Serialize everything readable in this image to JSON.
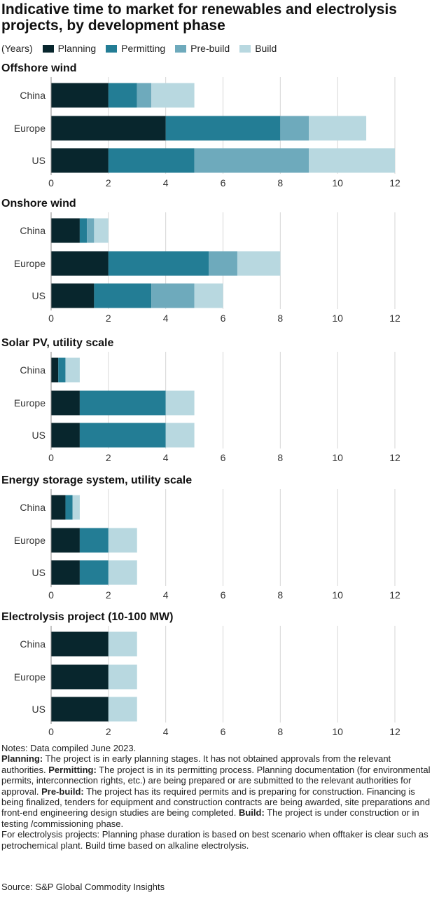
{
  "title": "Indicative time to market for renewables and electrolysis projects, by development phase",
  "legend": {
    "unit": "(Years)",
    "items": [
      {
        "label": "Planning",
        "color": "#08262d"
      },
      {
        "label": "Permitting",
        "color": "#237d95"
      },
      {
        "label": "Pre-build",
        "color": "#6eaabc"
      },
      {
        "label": "Build",
        "color": "#b8d8e0"
      }
    ]
  },
  "chart_data": [
    {
      "type": "bar",
      "orientation": "horizontal",
      "stacked": true,
      "title": "Offshore wind",
      "categories": [
        "China",
        "Europe",
        "US"
      ],
      "series": [
        {
          "name": "Planning",
          "values": [
            2,
            4,
            2
          ]
        },
        {
          "name": "Permitting",
          "values": [
            1,
            4,
            3
          ]
        },
        {
          "name": "Pre-build",
          "values": [
            0.5,
            1,
            4
          ]
        },
        {
          "name": "Build",
          "values": [
            1.5,
            2,
            3
          ]
        }
      ],
      "xlim": [
        0,
        12
      ],
      "xticks": [
        0,
        2,
        4,
        6,
        8,
        10,
        12
      ],
      "grid": true
    },
    {
      "type": "bar",
      "orientation": "horizontal",
      "stacked": true,
      "title": "Onshore wind",
      "categories": [
        "China",
        "Europe",
        "US"
      ],
      "series": [
        {
          "name": "Planning",
          "values": [
            1,
            2,
            1.5
          ]
        },
        {
          "name": "Permitting",
          "values": [
            0.25,
            3.5,
            2
          ]
        },
        {
          "name": "Pre-build",
          "values": [
            0.25,
            1,
            1.5
          ]
        },
        {
          "name": "Build",
          "values": [
            0.5,
            1.5,
            1
          ]
        }
      ],
      "xlim": [
        0,
        12
      ],
      "xticks": [
        0,
        2,
        4,
        6,
        8,
        10,
        12
      ],
      "grid": true
    },
    {
      "type": "bar",
      "orientation": "horizontal",
      "stacked": true,
      "title": "Solar PV, utility scale",
      "categories": [
        "China",
        "Europe",
        "US"
      ],
      "series": [
        {
          "name": "Planning",
          "values": [
            0.25,
            1,
            1
          ]
        },
        {
          "name": "Permitting",
          "values": [
            0.25,
            3,
            3
          ]
        },
        {
          "name": "Pre-build",
          "values": [
            0,
            0,
            0
          ]
        },
        {
          "name": "Build",
          "values": [
            0.5,
            1,
            1
          ]
        }
      ],
      "xlim": [
        0,
        12
      ],
      "xticks": [
        0,
        2,
        4,
        6,
        8,
        10,
        12
      ],
      "grid": true
    },
    {
      "type": "bar",
      "orientation": "horizontal",
      "stacked": true,
      "title": "Energy storage system, utility scale",
      "categories": [
        "China",
        "Europe",
        "US"
      ],
      "series": [
        {
          "name": "Planning",
          "values": [
            0.5,
            1,
            1
          ]
        },
        {
          "name": "Permitting",
          "values": [
            0.25,
            1,
            1
          ]
        },
        {
          "name": "Pre-build",
          "values": [
            0,
            0,
            0
          ]
        },
        {
          "name": "Build",
          "values": [
            0.25,
            1,
            1
          ]
        }
      ],
      "xlim": [
        0,
        12
      ],
      "xticks": [
        0,
        2,
        4,
        6,
        8,
        10,
        12
      ],
      "grid": true
    },
    {
      "type": "bar",
      "orientation": "horizontal",
      "stacked": true,
      "title": "Electrolysis project (10-100 MW)",
      "categories": [
        "China",
        "Europe",
        "US"
      ],
      "series": [
        {
          "name": "Planning",
          "values": [
            2,
            2,
            2
          ]
        },
        {
          "name": "Permitting",
          "values": [
            0,
            0,
            0
          ]
        },
        {
          "name": "Pre-build",
          "values": [
            0,
            0,
            0
          ]
        },
        {
          "name": "Build",
          "values": [
            1,
            1,
            1
          ]
        }
      ],
      "xlim": [
        0,
        12
      ],
      "xticks": [
        0,
        2,
        4,
        6,
        8,
        10,
        12
      ],
      "grid": true
    }
  ],
  "notes": {
    "compiled": "Notes: Data compiled June 2023.",
    "planning_label": "Planning:",
    "planning_text": " The project is in early planning stages. It has not obtained approvals from the relevant authorities. ",
    "permitting_label": "Permitting:",
    "permitting_text": " The project is in its permitting process. Planning documentation (for environmental permits, interconnection rights, etc.) are being prepared or are submitted to the relevant authorities for approval. ",
    "prebuild_label": "Pre-build:",
    "prebuild_text": " The project has its required permits and is preparing for construction. Financing is being finalized, tenders for equipment and construction contracts are being awarded, site preparations and front-end engineering design studies are being completed. ",
    "build_label": "Build:",
    "build_text": " The project is under construction or in testing /commissioning phase.",
    "electrolysis": "For electrolysis projects: Planning phase duration is based on best scenario when offtaker is clear such as petrochemical plant. Build time based on alkaline electrolysis."
  },
  "source": "Source: S&P Global Commodity Insights"
}
